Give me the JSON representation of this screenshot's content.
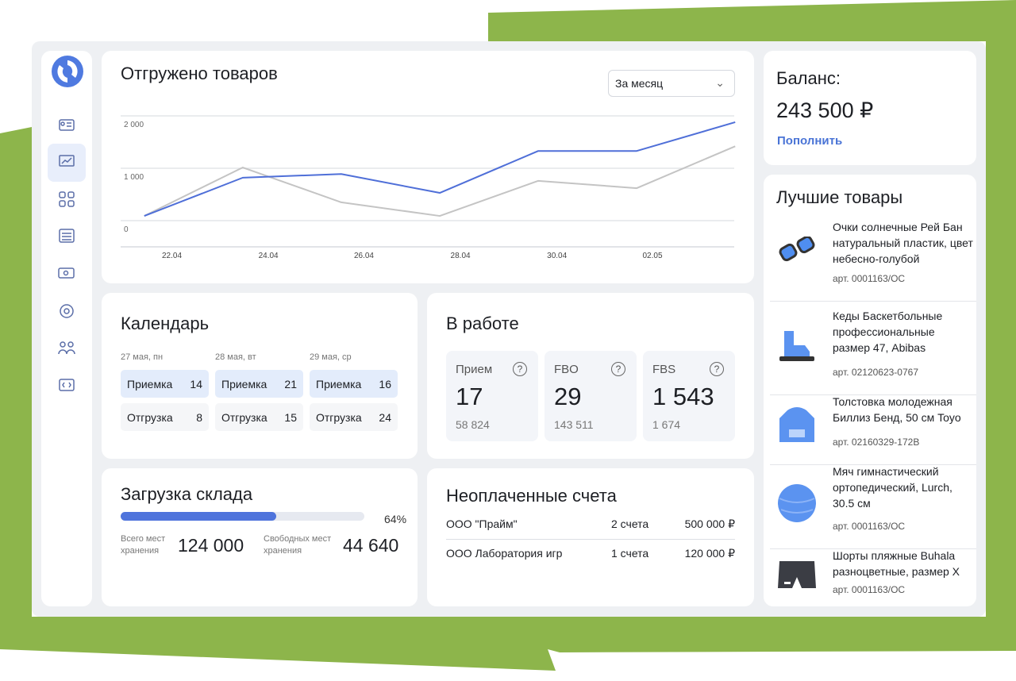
{
  "chart_data": {
    "type": "line",
    "title": "Отгружено товаров",
    "period": "За месяц",
    "x": [
      0,
      1,
      2,
      3,
      4,
      5,
      6
    ],
    "xlim": [
      -0.24,
      5.99
    ],
    "xticks": [
      {
        "value": 0.28,
        "label": "22.04"
      },
      {
        "value": 1.26,
        "label": "24.04"
      },
      {
        "value": 2.23,
        "label": "26.04"
      },
      {
        "value": 3.21,
        "label": "28.04"
      },
      {
        "value": 4.19,
        "label": "30.04"
      },
      {
        "value": 5.16,
        "label": "02.05"
      }
    ],
    "ylim": [
      -500,
      2000
    ],
    "yticks": [
      0,
      {
        "value": 1000,
        "label": "1 000"
      },
      {
        "value": 2000,
        "label": "2 000"
      }
    ],
    "grid": true,
    "series": [
      {
        "color": "#c4c4c4",
        "values": [
          90,
          1015,
          350,
          90,
          760,
          620,
          1420
        ]
      },
      {
        "color": "#4f6fd8",
        "values": [
          90,
          820,
          890,
          530,
          1330,
          1330,
          1880
        ]
      }
    ]
  },
  "balance": {
    "title": "Баланс:",
    "amount": "243 500 ₽",
    "action": "Пополнить"
  },
  "calendar": {
    "title": "Календарь",
    "days": [
      {
        "date": "27 мая, пн",
        "rows": [
          [
            "Приемка",
            14
          ],
          [
            "Отгрузка",
            8
          ]
        ]
      },
      {
        "date": "28 мая, вт",
        "rows": [
          [
            "Приемка",
            21
          ],
          [
            "Отгрузка",
            15
          ]
        ]
      },
      {
        "date": "29 мая, ср",
        "rows": [
          [
            "Приемка",
            16
          ],
          [
            "Отгрузка",
            24
          ]
        ]
      }
    ]
  },
  "in_work": {
    "title": "В работе",
    "cards": [
      {
        "label": "Прием",
        "value": 17,
        "sub": "58 824"
      },
      {
        "label": "FBO",
        "value": 29,
        "sub": "143 511"
      },
      {
        "label": "FBS",
        "value": "1 543",
        "sub": "1 674"
      }
    ]
  },
  "warehouse": {
    "title": "Загрузка склада",
    "percent": 64,
    "percent_label": "64%",
    "total_label": "Всего мест хранения",
    "total": "124 000",
    "free_label": "Свободных мест хранения",
    "free": "44 640"
  },
  "invoices": {
    "title": "Неоплаченные счета",
    "rows": [
      [
        "ООО \"Прайм\"",
        "2 счета",
        "500 000 ₽"
      ],
      [
        "ООО Лаборатория игр",
        "1 счета",
        "120 000 ₽"
      ]
    ]
  },
  "products": {
    "title": "Лучшие товары",
    "items": [
      {
        "name": "Очки солнечные Рей Бан натуральный пластик, цвет небесно-голубой",
        "sku": "арт. 0001163/ОС"
      },
      {
        "name": "Кеды Баскетбольные профессиональные размер 47,  Abibas",
        "sku": "арт. 02120623-0767"
      },
      {
        "name": "Толстовка молодежная Биллиз Бенд, 50 см  Toyo",
        "sku": "арт. 02160329-172B"
      },
      {
        "name": "Мяч гимнастический ортопедический, Lurch, 30.5 см",
        "sku": "арт. 0001163/ОС"
      },
      {
        "name": "Шорты пляжные  Buhala разноцветные, размер X",
        "sku": "арт. 0001163/ОС"
      }
    ]
  }
}
